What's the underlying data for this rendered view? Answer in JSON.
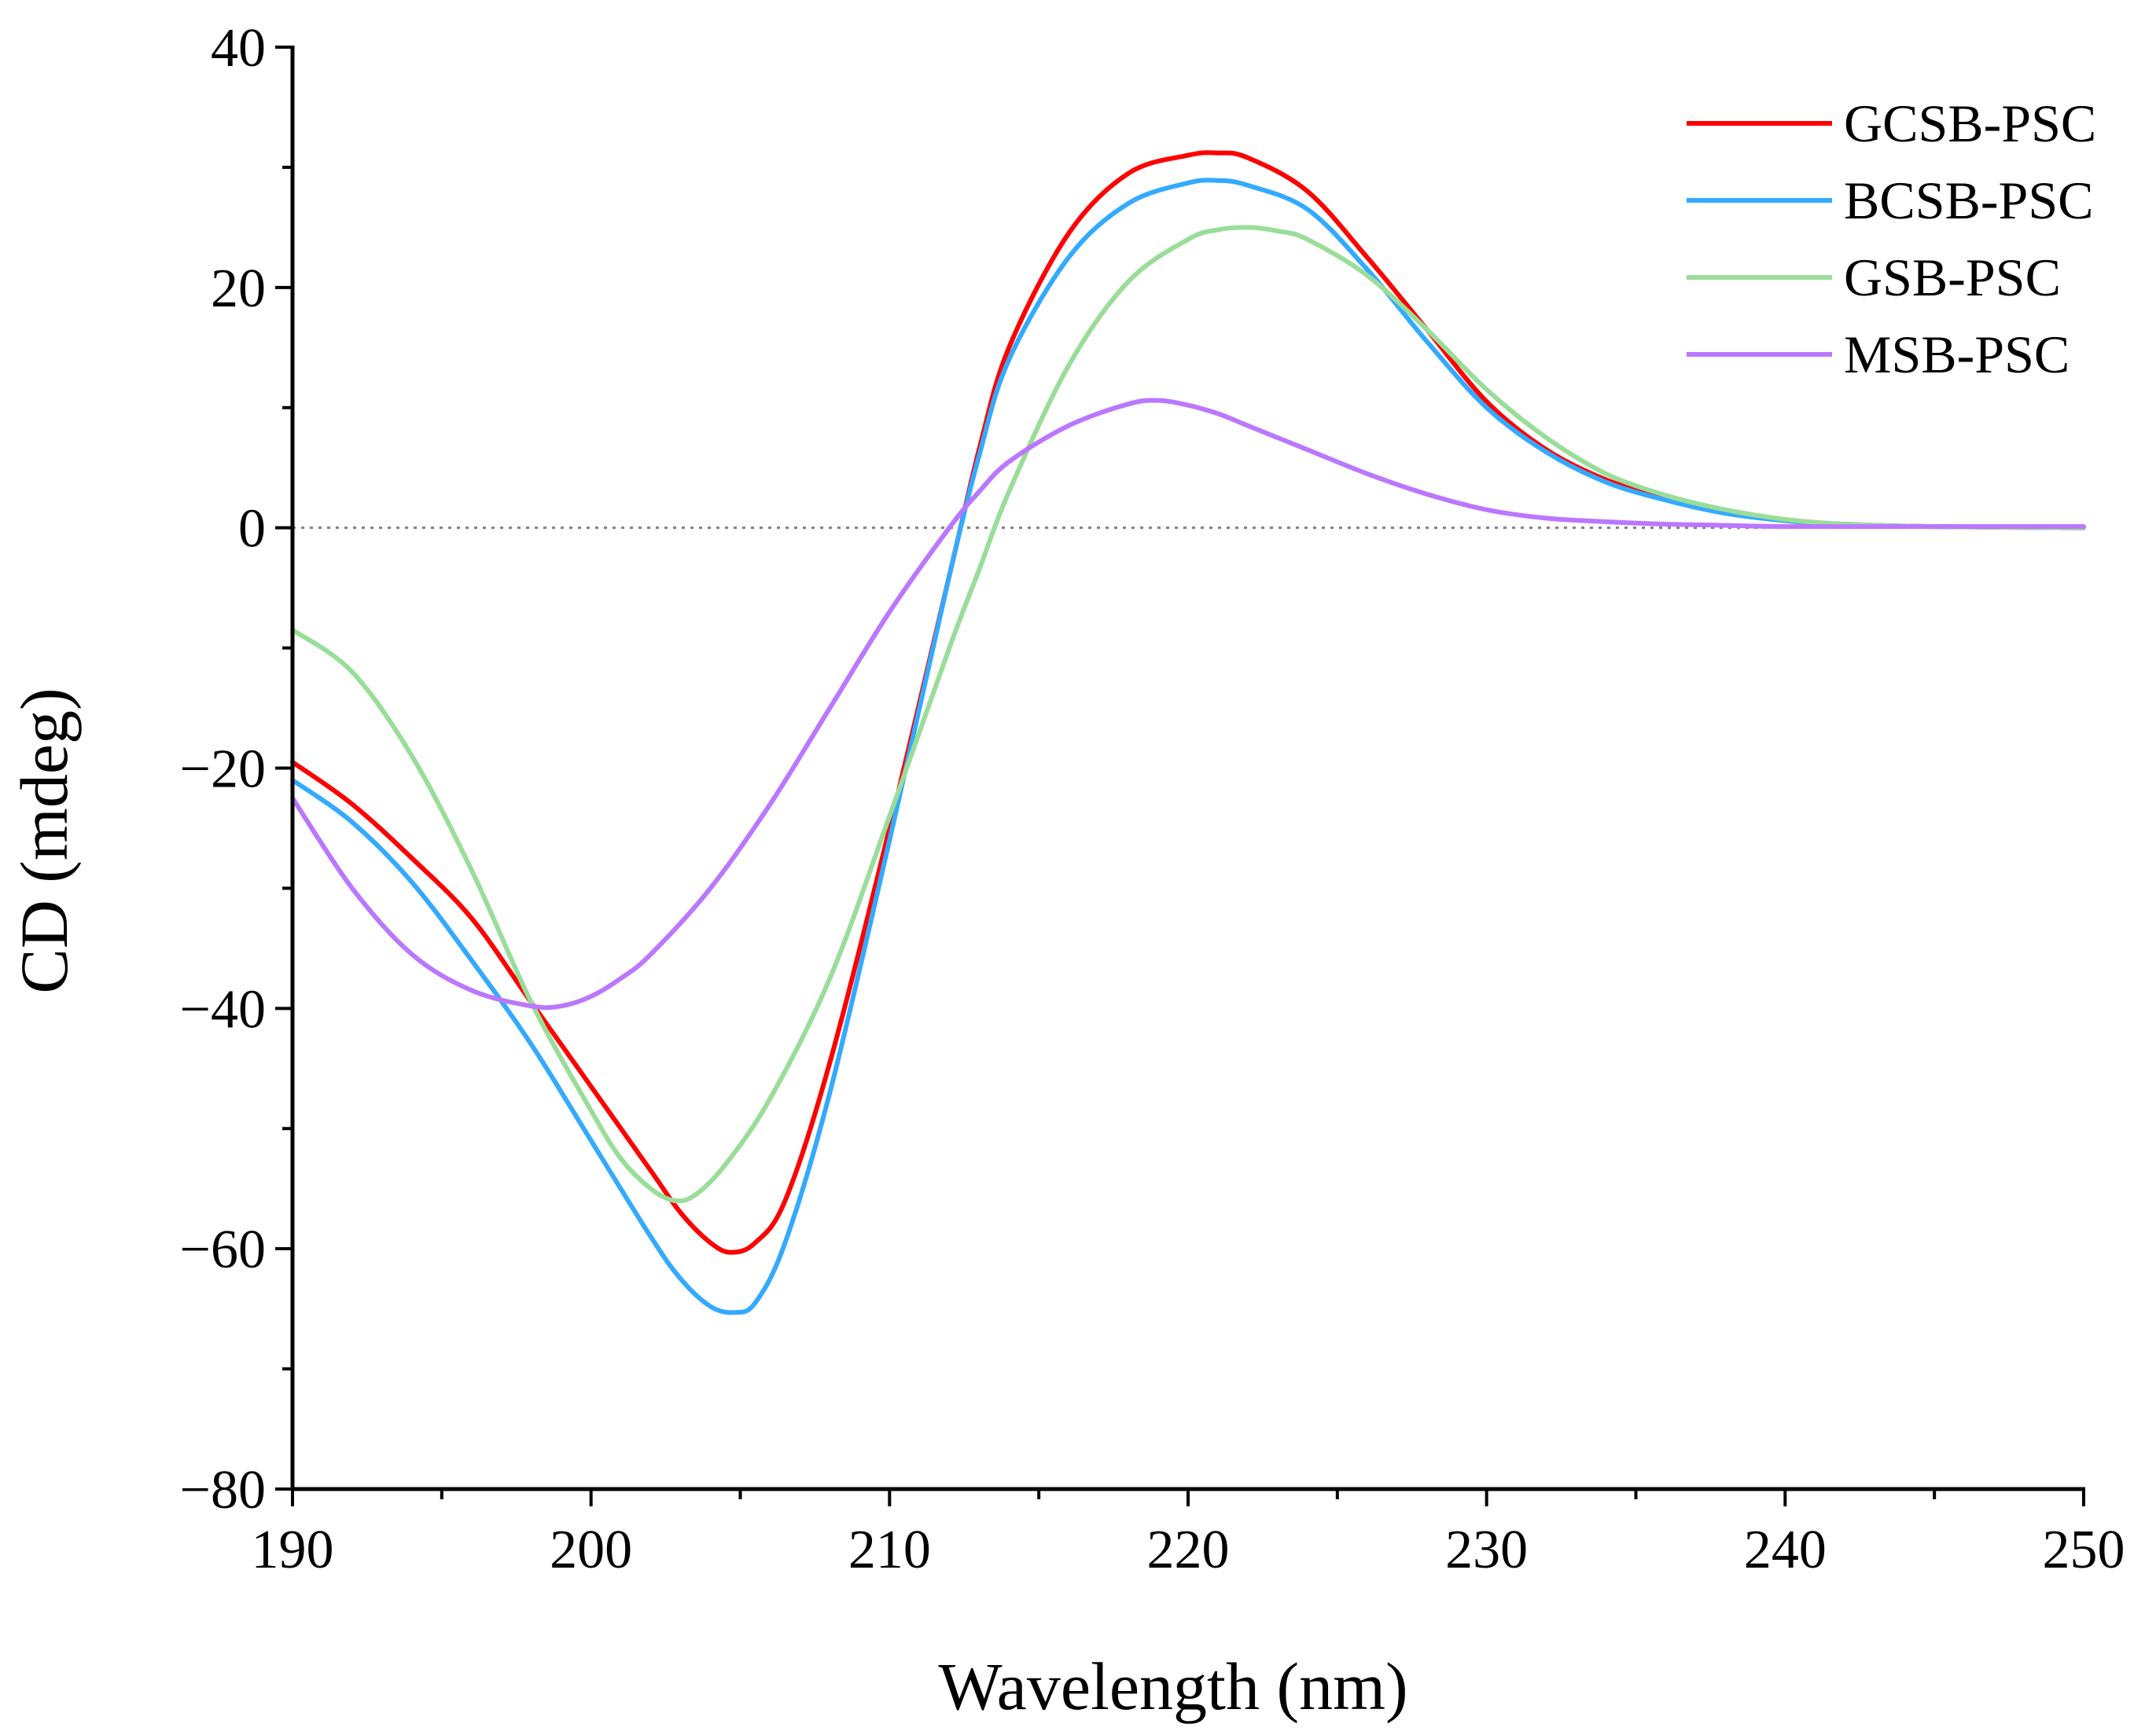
{
  "chart_data": {
    "type": "line",
    "title": "",
    "xlabel": "Wavelength (nm)",
    "ylabel": "CD (mdeg)",
    "xlim": [
      190,
      250
    ],
    "ylim": [
      -80,
      40
    ],
    "xticks": [
      "190",
      "200",
      "210",
      "220",
      "230",
      "240",
      "250"
    ],
    "yticks": [
      "40",
      "20",
      "0",
      "−20",
      "−40",
      "−60",
      "−80"
    ],
    "ytick_values": [
      40,
      20,
      0,
      -20,
      -40,
      -60,
      -80
    ],
    "xtick_values": [
      190,
      200,
      210,
      220,
      230,
      240,
      250
    ],
    "zero_line": true,
    "legend_position": "top-right",
    "series": [
      {
        "name": "GCSB-PSC",
        "color": "#ff0000",
        "x": [
          190,
          192,
          194,
          196,
          198,
          200,
          202,
          203,
          204,
          204.7,
          205.5,
          206.5,
          208,
          210,
          212,
          213,
          214,
          216,
          218,
          220,
          221,
          222,
          224,
          226,
          228,
          230,
          232,
          234,
          236,
          238,
          240,
          242,
          245,
          250
        ],
        "y": [
          -19.5,
          -23,
          -27.5,
          -32.5,
          -39.5,
          -46.5,
          -53.5,
          -57,
          -59.5,
          -60.3,
          -59.5,
          -56,
          -44.5,
          -25,
          -4,
          6.5,
          15,
          24.5,
          29.5,
          31,
          31.2,
          30.8,
          28,
          22.5,
          16.5,
          10.5,
          6.5,
          4,
          2.5,
          1.3,
          0.6,
          0.3,
          0.1,
          0
        ]
      },
      {
        "name": "BCSB-PSC",
        "color": "#33aaff",
        "x": [
          190,
          192,
          194,
          196,
          198,
          200,
          202,
          203,
          204,
          204.8,
          205.5,
          206.5,
          208,
          210,
          212,
          213,
          214,
          216,
          218,
          220,
          221,
          222,
          224,
          226,
          228,
          230,
          232,
          234,
          236,
          238,
          240,
          242,
          245,
          250
        ],
        "y": [
          -21,
          -24.5,
          -29.5,
          -36,
          -43,
          -51,
          -59,
          -62.5,
          -64.8,
          -65.3,
          -64.5,
          -59.5,
          -47,
          -26,
          -4,
          6,
          14,
          22.5,
          27,
          28.7,
          28.9,
          28.5,
          26.5,
          21.5,
          15.5,
          10,
          6.3,
          3.8,
          2.3,
          1.2,
          0.6,
          0.3,
          0.1,
          0
        ]
      },
      {
        "name": "GSB-PSC",
        "color": "#99dd99",
        "x": [
          190,
          192,
          194,
          196,
          198,
          200,
          201,
          202,
          202.8,
          203.5,
          204.5,
          206,
          208,
          210,
          212,
          213,
          214,
          216,
          218,
          220,
          221,
          222,
          223,
          224,
          226,
          228,
          230,
          232,
          234,
          236,
          238,
          240,
          242,
          245,
          250
        ],
        "y": [
          -8.5,
          -12,
          -19,
          -28.5,
          -39.5,
          -48.5,
          -52.5,
          -55,
          -56,
          -55.5,
          -53,
          -47.5,
          -37.5,
          -24,
          -10,
          -3.5,
          3,
          13.5,
          20.5,
          24,
          24.8,
          25,
          24.7,
          24,
          21,
          16.5,
          11.5,
          7.5,
          4.5,
          2.7,
          1.5,
          0.7,
          0.3,
          0.1,
          0
        ]
      },
      {
        "name": "MSB-PSC",
        "color": "#bb77ff",
        "x": [
          190,
          192,
          194,
          196,
          198,
          199,
          200,
          201,
          202,
          204,
          206,
          208,
          210,
          212,
          213,
          214,
          216,
          218,
          219,
          220,
          221,
          222,
          224,
          226,
          228,
          230,
          232,
          234,
          236,
          238,
          240,
          245,
          250
        ],
        "y": [
          -22.5,
          -30,
          -35.5,
          -38.5,
          -39.8,
          -39.8,
          -39,
          -37.5,
          -35.5,
          -30,
          -23,
          -15,
          -7,
          0,
          3,
          5.5,
          8.5,
          10.3,
          10.6,
          10.2,
          9.5,
          8.5,
          6.5,
          4.5,
          2.8,
          1.5,
          0.8,
          0.5,
          0.3,
          0.2,
          0.1,
          0.1,
          0.1
        ]
      }
    ]
  }
}
